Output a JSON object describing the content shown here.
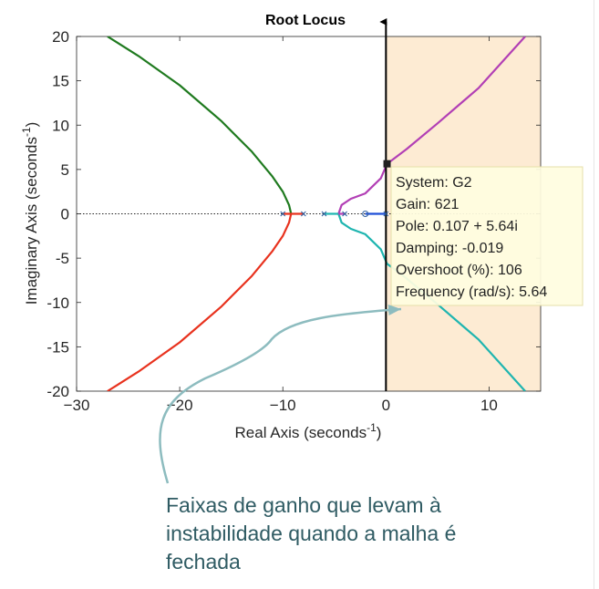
{
  "chart_data": {
    "type": "line",
    "title": "Root Locus",
    "xlabel": "Real Axis (seconds",
    "ylabel": "Imaginary Axis (seconds",
    "label_superscript": "-1",
    "label_close": ")",
    "xlim": [
      -30,
      15
    ],
    "ylim": [
      -20,
      20
    ],
    "xticks": [
      -30,
      -20,
      -10,
      0,
      10
    ],
    "yticks": [
      20,
      15,
      10,
      5,
      0,
      -5,
      -10,
      -15,
      -20
    ],
    "xtick_labels": [
      "−30",
      "−20",
      "−10",
      "0",
      "10"
    ],
    "ytick_labels": [
      "20",
      "15",
      "10",
      "5",
      "0",
      "-5",
      "-10",
      "-15",
      "-20"
    ],
    "unstable_region": {
      "x_from": 0,
      "x_to": 15,
      "color": "#fdebd3"
    },
    "branches": [
      {
        "color": "#1f7a1f",
        "points": [
          [
            -9.2,
            0
          ],
          [
            -9.4,
            1
          ],
          [
            -10,
            2.5
          ],
          [
            -11,
            4.2
          ],
          [
            -13,
            7
          ],
          [
            -16,
            10.5
          ],
          [
            -20,
            14.5
          ],
          [
            -24,
            17.8
          ],
          [
            -27,
            20
          ]
        ]
      },
      {
        "color": "#e8321e",
        "points": [
          [
            -9.2,
            0
          ],
          [
            -9.4,
            -1
          ],
          [
            -10,
            -2.5
          ],
          [
            -11,
            -4.2
          ],
          [
            -13,
            -7
          ],
          [
            -16,
            -10.5
          ],
          [
            -20,
            -14.5
          ],
          [
            -24,
            -17.8
          ],
          [
            -27,
            -20
          ]
        ]
      },
      {
        "color": "#b23fb5",
        "points": [
          [
            -4.6,
            0
          ],
          [
            -4.3,
            1
          ],
          [
            -3.4,
            1.7
          ],
          [
            -2,
            2.3
          ],
          [
            -0.5,
            4
          ],
          [
            0.107,
            5.64
          ],
          [
            2,
            7.3
          ],
          [
            5,
            10.2
          ],
          [
            9,
            14.2
          ],
          [
            13.5,
            20
          ]
        ]
      },
      {
        "color": "#1fb5b0",
        "points": [
          [
            -4.6,
            0
          ],
          [
            -4.3,
            -1
          ],
          [
            -3.4,
            -1.7
          ],
          [
            -2,
            -2.3
          ],
          [
            -0.5,
            -4
          ],
          [
            0.107,
            -5.64
          ],
          [
            2,
            -7.3
          ],
          [
            5,
            -10.2
          ],
          [
            9,
            -14.2
          ],
          [
            13.5,
            -20
          ]
        ]
      },
      {
        "color": "#e8321e",
        "points": [
          [
            -10,
            0
          ],
          [
            -8,
            0
          ]
        ]
      },
      {
        "color": "#1fb5b0",
        "points": [
          [
            -6,
            0
          ],
          [
            -4.6,
            0
          ]
        ]
      },
      {
        "color": "#b23fb5",
        "points": [
          [
            -4.6,
            0
          ],
          [
            -4,
            0
          ]
        ]
      },
      {
        "color": "#1f4fd8",
        "points": [
          [
            -2,
            0
          ],
          [
            0,
            0
          ]
        ]
      }
    ],
    "poles": [
      [
        -10,
        0
      ],
      [
        -8,
        0
      ],
      [
        -6,
        0
      ],
      [
        -4,
        0
      ],
      [
        0,
        0
      ]
    ],
    "zeros": [
      [
        -2,
        0
      ]
    ],
    "selected_point": [
      0.107,
      5.64
    ],
    "datatip": {
      "lines": [
        "System: G2",
        "Gain: 621",
        "Pole: 0.107 + 5.64i",
        "Damping: -0.019",
        "Overshoot (%): 106",
        "Frequency (rad/s): 5.64"
      ]
    }
  },
  "annotation": {
    "text_lines": [
      "Faixas de ganho que levam à",
      "instabilidade quando a malha é",
      "fechada"
    ],
    "arrow_color": "#8dbcbf"
  }
}
